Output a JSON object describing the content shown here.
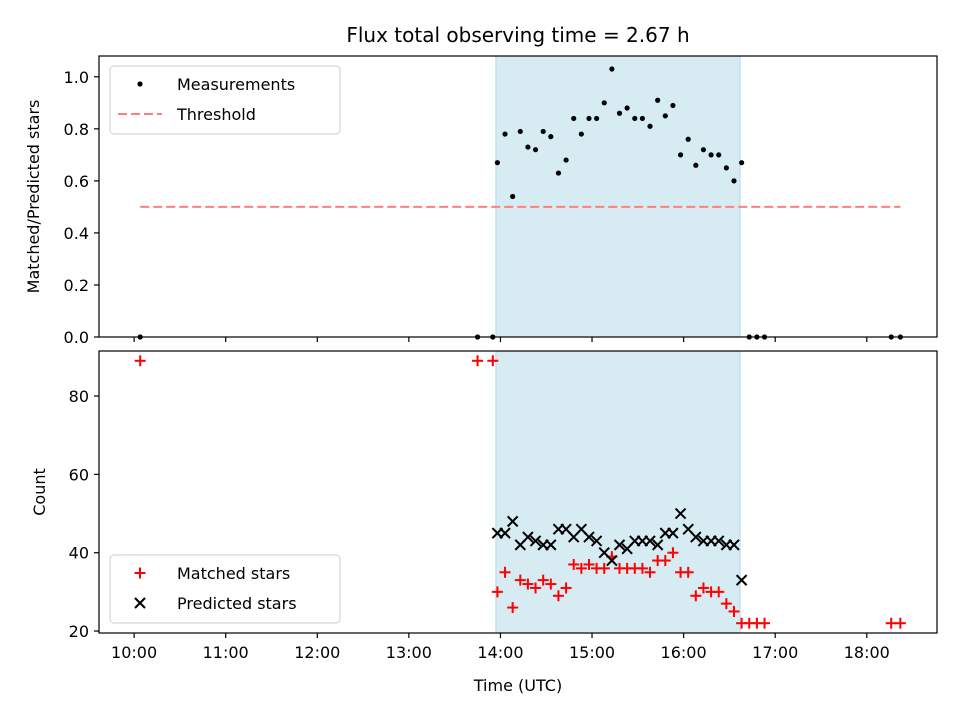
{
  "figure": {
    "title": "Flux total observing time = 2.67 h"
  },
  "colors": {
    "band": "#add8e6",
    "threshold": "#ff7f7f",
    "matched": "#ff0000",
    "predicted": "#000000",
    "measurement": "#000000"
  },
  "chart_data": [
    {
      "type": "scatter",
      "title": "Flux total observing time = 2.67 h",
      "xlabel": "",
      "ylabel": "Matched/Predicted stars",
      "xlim": [
        "09:37",
        "18:46"
      ],
      "ylim": [
        0.0,
        1.08
      ],
      "x_ticks": [
        "10:00",
        "11:00",
        "12:00",
        "13:00",
        "14:00",
        "15:00",
        "16:00",
        "17:00",
        "18:00"
      ],
      "y_ticks": [
        "0.0",
        "0.2",
        "0.4",
        "0.6",
        "0.8",
        "1.0"
      ],
      "legend": {
        "placement": "top-left",
        "entries": [
          "Measurements",
          "Threshold"
        ]
      },
      "highlight_band": {
        "x_start": "13:57",
        "x_end": "16:37"
      },
      "series": [
        {
          "name": "Measurements",
          "marker": "dot",
          "points": [
            [
              "10:04",
              0.0
            ],
            [
              "13:45",
              0.0
            ],
            [
              "13:55",
              0.0
            ],
            [
              "13:58",
              0.67
            ],
            [
              "14:03",
              0.78
            ],
            [
              "14:08",
              0.54
            ],
            [
              "14:13",
              0.79
            ],
            [
              "14:18",
              0.73
            ],
            [
              "14:23",
              0.72
            ],
            [
              "14:28",
              0.79
            ],
            [
              "14:33",
              0.77
            ],
            [
              "14:38",
              0.63
            ],
            [
              "14:43",
              0.68
            ],
            [
              "14:48",
              0.84
            ],
            [
              "14:53",
              0.78
            ],
            [
              "14:58",
              0.84
            ],
            [
              "15:03",
              0.84
            ],
            [
              "15:08",
              0.9
            ],
            [
              "15:13",
              1.03
            ],
            [
              "15:18",
              0.86
            ],
            [
              "15:23",
              0.88
            ],
            [
              "15:28",
              0.84
            ],
            [
              "15:33",
              0.84
            ],
            [
              "15:38",
              0.81
            ],
            [
              "15:43",
              0.91
            ],
            [
              "15:48",
              0.85
            ],
            [
              "15:53",
              0.89
            ],
            [
              "15:58",
              0.7
            ],
            [
              "16:03",
              0.76
            ],
            [
              "16:08",
              0.66
            ],
            [
              "16:13",
              0.72
            ],
            [
              "16:18",
              0.7
            ],
            [
              "16:23",
              0.7
            ],
            [
              "16:28",
              0.65
            ],
            [
              "16:33",
              0.6
            ],
            [
              "16:38",
              0.67
            ],
            [
              "16:43",
              0.0
            ],
            [
              "16:48",
              0.0
            ],
            [
              "16:53",
              0.0
            ],
            [
              "18:16",
              0.0
            ],
            [
              "18:22",
              0.0
            ]
          ]
        },
        {
          "name": "Threshold",
          "style": "dashed",
          "points": [
            [
              "10:04",
              0.5
            ],
            [
              "18:22",
              0.5
            ]
          ]
        }
      ]
    },
    {
      "type": "scatter",
      "title": "",
      "xlabel": "Time (UTC)",
      "ylabel": "Count",
      "xlim": [
        "09:37",
        "18:46"
      ],
      "ylim": [
        19.5,
        91.5
      ],
      "x_ticks": [
        "10:00",
        "11:00",
        "12:00",
        "13:00",
        "14:00",
        "15:00",
        "16:00",
        "17:00",
        "18:00"
      ],
      "y_ticks": [
        "20",
        "40",
        "60",
        "80"
      ],
      "legend": {
        "placement": "bottom-left",
        "entries": [
          "Matched stars",
          "Predicted stars"
        ]
      },
      "highlight_band": {
        "x_start": "13:57",
        "x_end": "16:37"
      },
      "series": [
        {
          "name": "Matched stars",
          "marker": "plus",
          "points": [
            [
              "10:04",
              89
            ],
            [
              "13:45",
              89
            ],
            [
              "13:55",
              89
            ],
            [
              "13:58",
              30
            ],
            [
              "14:03",
              35
            ],
            [
              "14:08",
              26
            ],
            [
              "14:13",
              33
            ],
            [
              "14:18",
              32
            ],
            [
              "14:23",
              31
            ],
            [
              "14:28",
              33
            ],
            [
              "14:33",
              32
            ],
            [
              "14:38",
              29
            ],
            [
              "14:43",
              31
            ],
            [
              "14:48",
              37
            ],
            [
              "14:53",
              36
            ],
            [
              "14:58",
              37
            ],
            [
              "15:03",
              36
            ],
            [
              "15:08",
              36
            ],
            [
              "15:13",
              39
            ],
            [
              "15:18",
              36
            ],
            [
              "15:23",
              36
            ],
            [
              "15:28",
              36
            ],
            [
              "15:33",
              36
            ],
            [
              "15:38",
              35
            ],
            [
              "15:43",
              38
            ],
            [
              "15:48",
              38
            ],
            [
              "15:53",
              40
            ],
            [
              "15:58",
              35
            ],
            [
              "16:03",
              35
            ],
            [
              "16:08",
              29
            ],
            [
              "16:13",
              31
            ],
            [
              "16:18",
              30
            ],
            [
              "16:23",
              30
            ],
            [
              "16:28",
              27
            ],
            [
              "16:33",
              25
            ],
            [
              "16:38",
              22
            ],
            [
              "16:43",
              22
            ],
            [
              "16:48",
              22
            ],
            [
              "16:53",
              22
            ],
            [
              "18:16",
              22
            ],
            [
              "18:22",
              22
            ]
          ]
        },
        {
          "name": "Predicted stars",
          "marker": "x",
          "points": [
            [
              "13:58",
              45
            ],
            [
              "14:03",
              45
            ],
            [
              "14:08",
              48
            ],
            [
              "14:13",
              42
            ],
            [
              "14:18",
              44
            ],
            [
              "14:23",
              43
            ],
            [
              "14:28",
              42
            ],
            [
              "14:33",
              42
            ],
            [
              "14:38",
              46
            ],
            [
              "14:43",
              46
            ],
            [
              "14:48",
              44
            ],
            [
              "14:53",
              46
            ],
            [
              "14:58",
              44
            ],
            [
              "15:03",
              43
            ],
            [
              "15:08",
              40
            ],
            [
              "15:13",
              38
            ],
            [
              "15:18",
              42
            ],
            [
              "15:23",
              41
            ],
            [
              "15:28",
              43
            ],
            [
              "15:33",
              43
            ],
            [
              "15:38",
              43
            ],
            [
              "15:43",
              42
            ],
            [
              "15:48",
              45
            ],
            [
              "15:53",
              45
            ],
            [
              "15:58",
              50
            ],
            [
              "16:03",
              46
            ],
            [
              "16:08",
              44
            ],
            [
              "16:13",
              43
            ],
            [
              "16:18",
              43
            ],
            [
              "16:23",
              43
            ],
            [
              "16:28",
              42
            ],
            [
              "16:33",
              42
            ],
            [
              "16:38",
              33
            ]
          ]
        }
      ]
    }
  ]
}
